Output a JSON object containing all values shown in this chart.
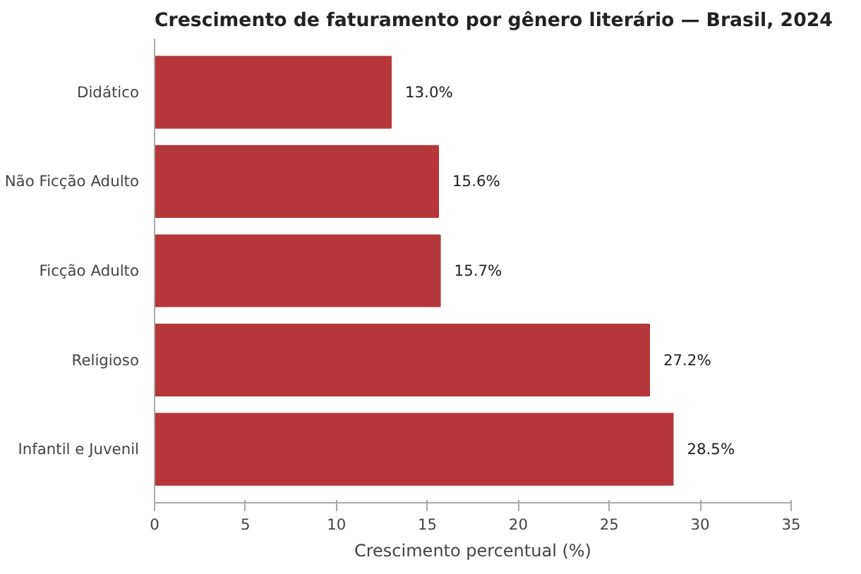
{
  "chart_data": {
    "type": "bar",
    "orientation": "horizontal",
    "title": "Crescimento de faturamento por gênero literário — Brasil, 2024",
    "xlabel": "Crescimento percentual (%)",
    "categories": [
      "Didático",
      "Não Ficção Adulto",
      "Ficção Adulto",
      "Religioso",
      "Infantil e Juvenil"
    ],
    "values": [
      13.0,
      15.6,
      15.7,
      27.2,
      28.5
    ],
    "value_labels": [
      "13.0%",
      "15.6%",
      "15.7%",
      "27.2%",
      "28.5%"
    ],
    "color": "#b5373c",
    "xlim": [
      0,
      35
    ],
    "xticks": [
      0,
      5,
      10,
      15,
      20,
      25,
      30,
      35
    ],
    "grid": false
  }
}
